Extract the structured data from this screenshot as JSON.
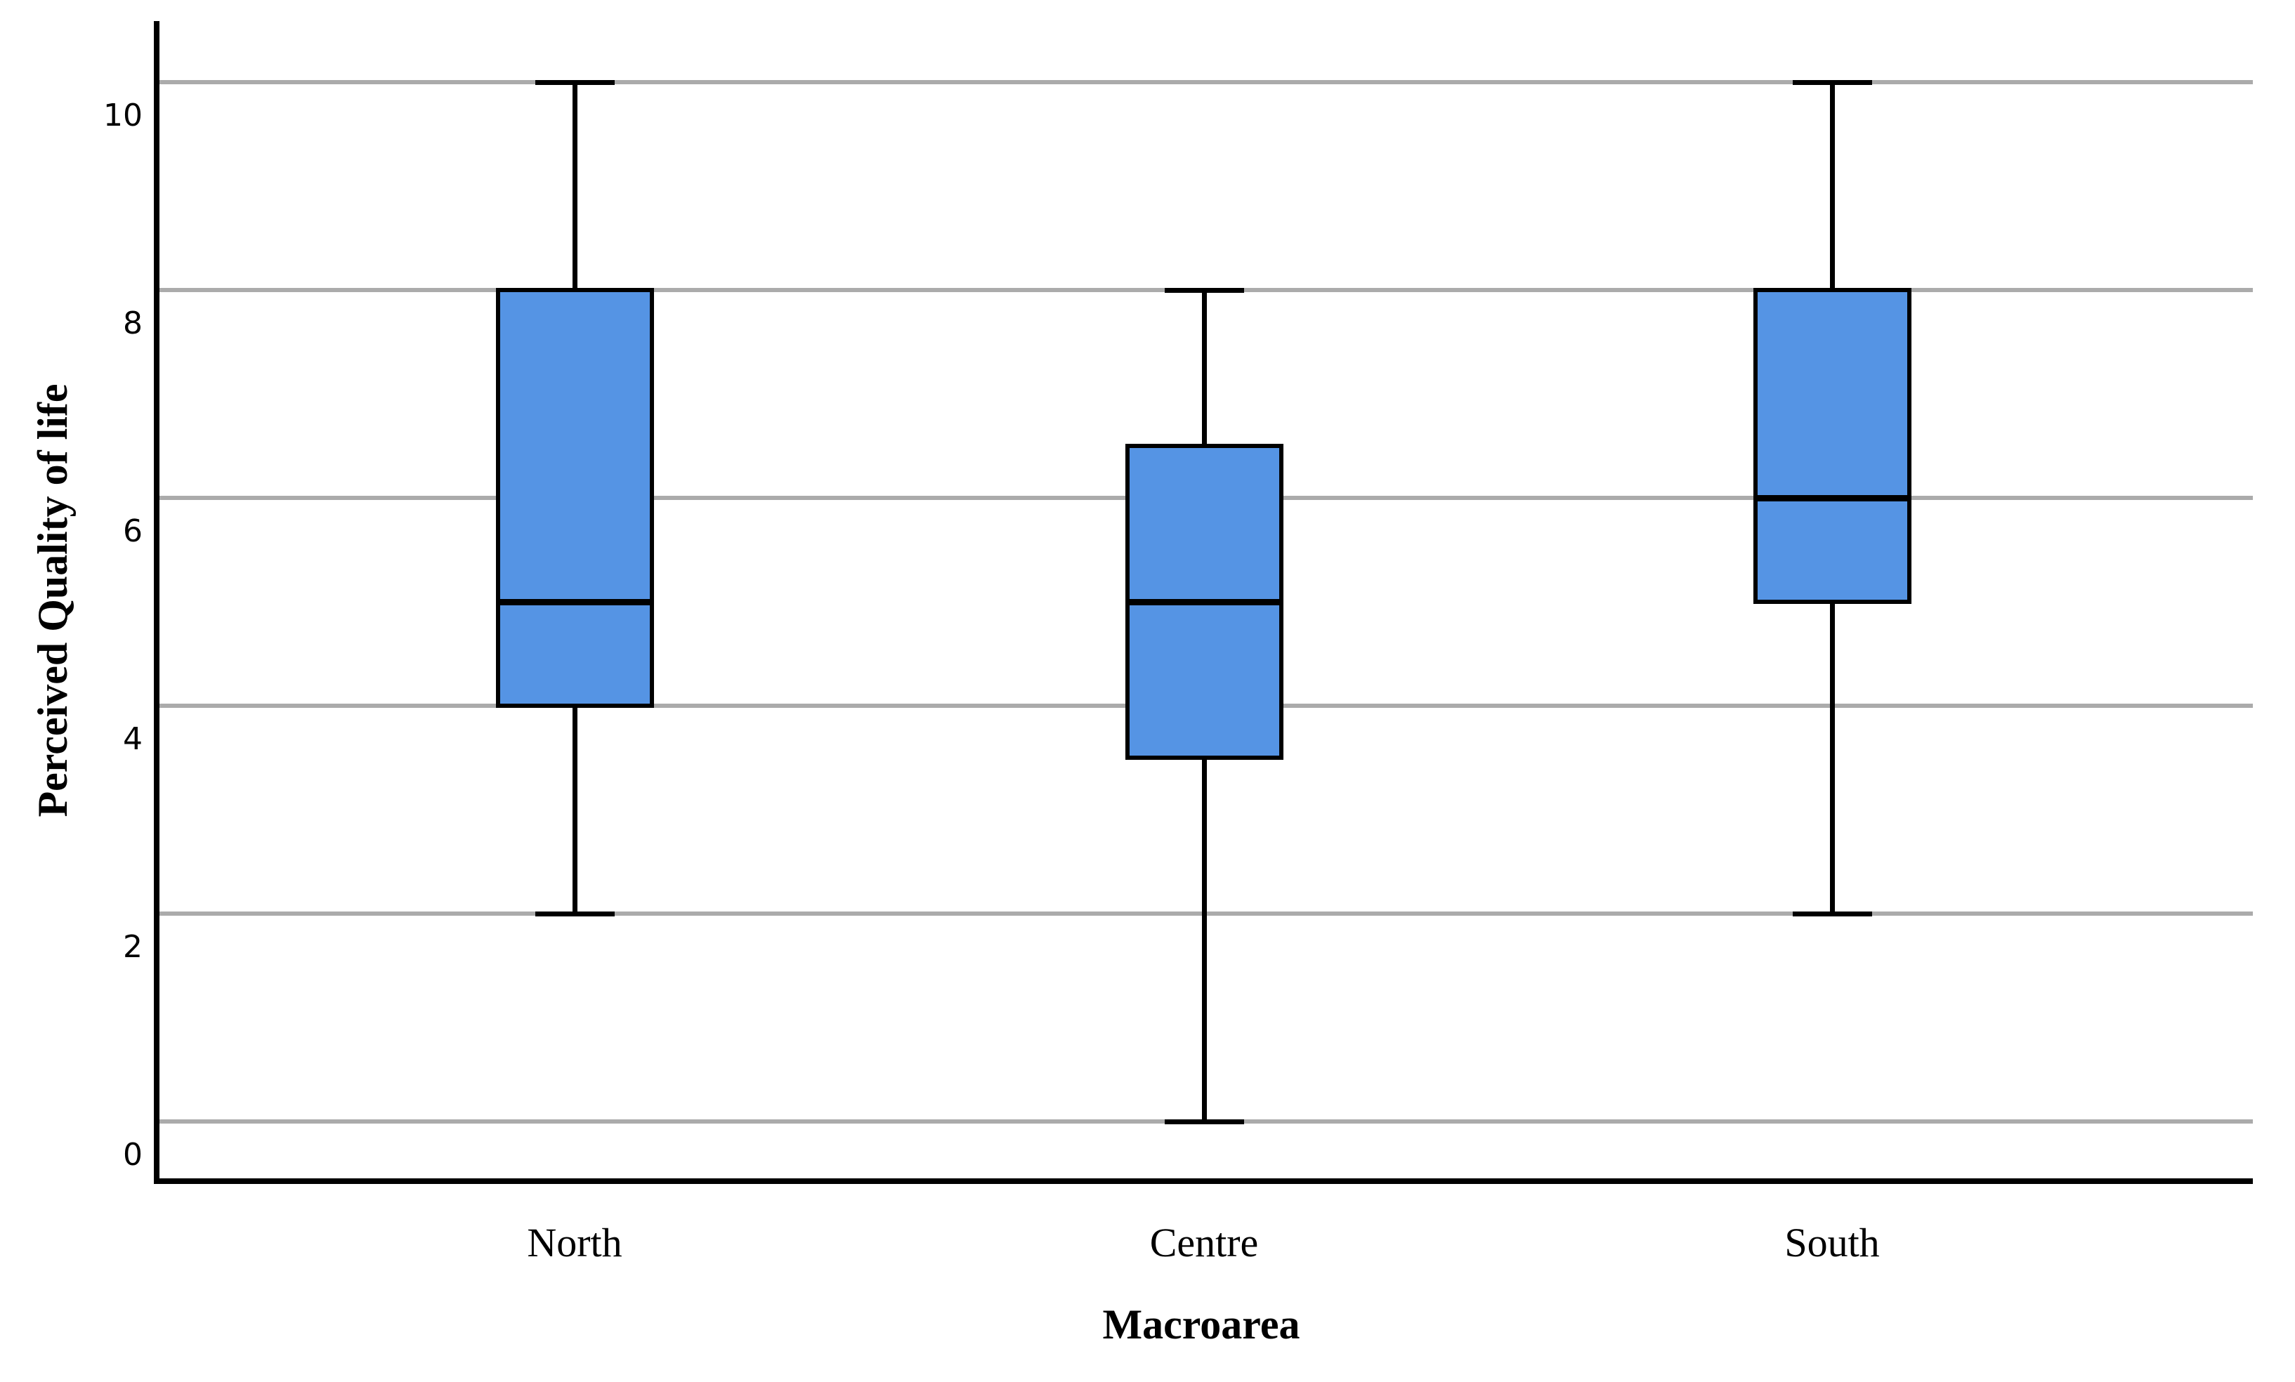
{
  "figure": {
    "background": "#FFFFFF"
  },
  "chart_data": {
    "type": "boxplot",
    "title": "",
    "xlabel": "Macroarea",
    "ylabel": "Perceived Quality of life",
    "categories": [
      "North",
      "Centre",
      "South"
    ],
    "yticks": [
      0,
      2,
      4,
      6,
      8,
      10
    ],
    "ylim": [
      0,
      10
    ],
    "grid": true,
    "legend": false,
    "series": [
      {
        "name": "North",
        "whisker_low": 2,
        "q1": 4,
        "median": 5,
        "q3": 8,
        "whisker_high": 10
      },
      {
        "name": "Centre",
        "whisker_low": 0,
        "q1": 3.5,
        "median": 5,
        "q3": 6.5,
        "whisker_high": 8
      },
      {
        "name": "South",
        "whisker_low": 2,
        "q1": 5,
        "median": 6,
        "q3": 8,
        "whisker_high": 10
      }
    ],
    "colors": {
      "box_fill": "#5594E4",
      "box_border": "#000000",
      "median": "#000000",
      "gridline": "#ABABAB",
      "axis": "#000000",
      "background": "#FFFFFF"
    }
  }
}
